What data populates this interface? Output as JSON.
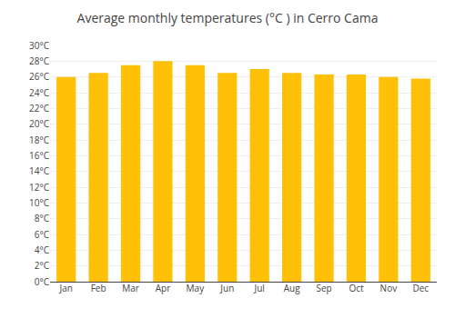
{
  "chart_data": {
    "type": "bar",
    "title": "Average monthly temperatures (°C ) in Cerro Cama",
    "categories": [
      "Jan",
      "Feb",
      "Mar",
      "Apr",
      "May",
      "Jun",
      "Jul",
      "Aug",
      "Sep",
      "Oct",
      "Nov",
      "Dec"
    ],
    "values": [
      26.0,
      26.5,
      27.5,
      28.0,
      27.5,
      26.5,
      27.0,
      26.5,
      26.3,
      26.3,
      26.0,
      25.8
    ],
    "color": "#FFC107",
    "ylim": [
      0,
      30
    ],
    "yticks": [
      {
        "value": 0,
        "label": "0°C"
      },
      {
        "value": 2,
        "label": "2°C"
      },
      {
        "value": 4,
        "label": "4°C"
      },
      {
        "value": 6,
        "label": "6°C"
      },
      {
        "value": 8,
        "label": "8°C"
      },
      {
        "value": 10,
        "label": "10°C"
      },
      {
        "value": 12,
        "label": "12°C"
      },
      {
        "value": 14,
        "label": "14°C"
      },
      {
        "value": 16,
        "label": "16°C"
      },
      {
        "value": 18,
        "label": "18°C"
      },
      {
        "value": 20,
        "label": "20°C"
      },
      {
        "value": 22,
        "label": "22°C"
      },
      {
        "value": 24,
        "label": "24°C"
      },
      {
        "value": 26,
        "label": "26°C"
      },
      {
        "value": 28,
        "label": "28°C"
      },
      {
        "value": 30,
        "label": "30°C"
      }
    ],
    "grid": true
  }
}
